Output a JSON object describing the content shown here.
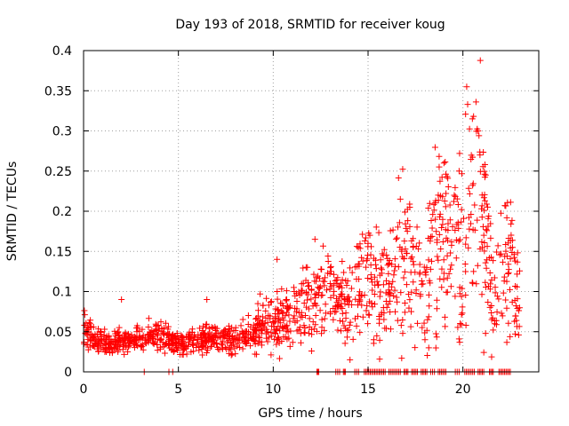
{
  "chart_data": {
    "type": "scatter",
    "title": "Day 193 of 2018, SRMTID for receiver koug",
    "xlabel": "GPS time / hours",
    "ylabel": "SRMTID / TECUs",
    "xlim": [
      0,
      24
    ],
    "ylim": [
      0,
      0.4
    ],
    "x_ticks": [
      0,
      5,
      10,
      15,
      20
    ],
    "y_ticks": [
      0,
      0.05,
      0.1,
      0.15,
      0.2,
      0.25,
      0.3,
      0.35,
      0.4
    ],
    "x_tick_labels": [
      "0",
      "5",
      "10",
      "15",
      "20"
    ],
    "y_tick_labels": [
      "0",
      "0.05",
      "0.1",
      "0.15",
      "0.2",
      "0.25",
      "0.3",
      "0.35",
      "0.4"
    ],
    "grid": true,
    "marker": "+",
    "color": "#ff0000",
    "trend": [
      [
        0.0,
        0.06
      ],
      [
        0.5,
        0.04
      ],
      [
        1.0,
        0.035
      ],
      [
        1.5,
        0.035
      ],
      [
        2.0,
        0.04
      ],
      [
        3.0,
        0.04
      ],
      [
        4.0,
        0.045
      ],
      [
        5.0,
        0.035
      ],
      [
        6.0,
        0.04
      ],
      [
        7.0,
        0.045
      ],
      [
        8.0,
        0.04
      ],
      [
        9.0,
        0.05
      ],
      [
        9.5,
        0.06
      ],
      [
        10.0,
        0.06
      ],
      [
        11.0,
        0.07
      ],
      [
        12.0,
        0.09
      ],
      [
        13.0,
        0.1
      ],
      [
        14.0,
        0.08
      ],
      [
        15.0,
        0.12
      ],
      [
        16.0,
        0.11
      ],
      [
        17.0,
        0.13
      ],
      [
        18.0,
        0.11
      ],
      [
        19.0,
        0.17
      ],
      [
        20.0,
        0.16
      ],
      [
        20.5,
        0.22
      ],
      [
        21.0,
        0.19
      ],
      [
        21.5,
        0.1
      ],
      [
        22.0,
        0.12
      ],
      [
        22.5,
        0.13
      ],
      [
        23.0,
        0.09
      ]
    ],
    "highlight_points": [
      [
        20.2,
        0.355
      ],
      [
        20.25,
        0.333
      ],
      [
        20.5,
        0.315
      ],
      [
        20.8,
        0.3
      ],
      [
        19.0,
        0.26
      ],
      [
        20.9,
        0.27
      ],
      [
        21.2,
        0.245
      ],
      [
        19.8,
        0.25
      ],
      [
        18.7,
        0.22
      ],
      [
        17.2,
        0.205
      ],
      [
        16.7,
        0.215
      ],
      [
        12.2,
        0.165
      ],
      [
        15.0,
        0.16
      ],
      [
        15.8,
        0.145
      ],
      [
        18.0,
        0.04
      ],
      [
        18.2,
        0.03
      ],
      [
        15.3,
        0.04
      ],
      [
        10.2,
        0.14
      ],
      [
        6.5,
        0.09
      ],
      [
        2.0,
        0.09
      ]
    ],
    "zero_ranges": [
      [
        12.3,
        12.4
      ],
      [
        13.3,
        13.5
      ],
      [
        13.7,
        13.8
      ],
      [
        14.3,
        14.5
      ],
      [
        14.8,
        15.9
      ],
      [
        16.1,
        16.7
      ],
      [
        16.9,
        17.1
      ],
      [
        17.3,
        17.6
      ],
      [
        17.8,
        18.1
      ],
      [
        18.3,
        18.5
      ],
      [
        18.7,
        19.1
      ],
      [
        19.6,
        19.8
      ],
      [
        20.1,
        20.6
      ],
      [
        20.8,
        21.1
      ],
      [
        21.4,
        21.6
      ],
      [
        21.9,
        22.5
      ]
    ],
    "zero_singles": [
      3.2,
      4.5,
      4.7
    ]
  }
}
